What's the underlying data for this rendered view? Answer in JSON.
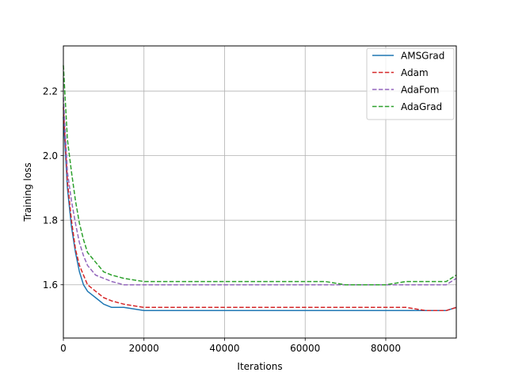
{
  "chart_data": {
    "type": "line",
    "title": "",
    "xlabel": "Iterations",
    "ylabel": "Training loss",
    "xlim": [
      0,
      97500
    ],
    "ylim": [
      1.435,
      2.34
    ],
    "xticks": [
      0,
      20000,
      40000,
      60000,
      80000
    ],
    "yticks": [
      1.6,
      1.8,
      2.0,
      2.2
    ],
    "xtick_labels": [
      "0",
      "20000",
      "40000",
      "60000",
      "80000"
    ],
    "ytick_labels": [
      "1.6",
      "1.8",
      "2.0",
      "2.2"
    ],
    "grid": true,
    "legend_position": "top-right",
    "series": [
      {
        "name": "AMSGrad",
        "color": "#1f77b4",
        "style": "solid",
        "x": [
          0,
          1000,
          2000,
          3000,
          4000,
          5000,
          6000,
          8000,
          10000,
          12000,
          15000,
          20000,
          25000,
          30000,
          35000,
          40000,
          45000,
          50000,
          55000,
          60000,
          65000,
          70000,
          75000,
          80000,
          85000,
          90000,
          95000,
          97500
        ],
        "y": [
          2.12,
          1.9,
          1.78,
          1.7,
          1.64,
          1.6,
          1.58,
          1.56,
          1.54,
          1.53,
          1.53,
          1.52,
          1.52,
          1.52,
          1.52,
          1.52,
          1.52,
          1.52,
          1.52,
          1.52,
          1.52,
          1.52,
          1.52,
          1.52,
          1.52,
          1.52,
          1.52,
          1.53
        ]
      },
      {
        "name": "Adam",
        "color": "#d62728",
        "style": "dashed",
        "x": [
          0,
          1000,
          2000,
          3000,
          4000,
          5000,
          6000,
          8000,
          10000,
          12000,
          15000,
          20000,
          25000,
          30000,
          35000,
          40000,
          45000,
          50000,
          55000,
          60000,
          65000,
          70000,
          75000,
          80000,
          85000,
          90000,
          95000,
          97500
        ],
        "y": [
          2.15,
          1.92,
          1.8,
          1.71,
          1.66,
          1.63,
          1.6,
          1.58,
          1.56,
          1.55,
          1.54,
          1.53,
          1.53,
          1.53,
          1.53,
          1.53,
          1.53,
          1.53,
          1.53,
          1.53,
          1.53,
          1.53,
          1.53,
          1.53,
          1.53,
          1.52,
          1.52,
          1.53
        ]
      },
      {
        "name": "AdaFom",
        "color": "#9467bd",
        "style": "dashed",
        "x": [
          0,
          1000,
          2000,
          3000,
          4000,
          5000,
          6000,
          8000,
          10000,
          12000,
          15000,
          20000,
          25000,
          30000,
          35000,
          40000,
          45000,
          50000,
          55000,
          60000,
          65000,
          70000,
          75000,
          80000,
          85000,
          90000,
          95000,
          97500
        ],
        "y": [
          2.18,
          1.95,
          1.86,
          1.79,
          1.73,
          1.69,
          1.66,
          1.63,
          1.62,
          1.61,
          1.6,
          1.6,
          1.6,
          1.6,
          1.6,
          1.6,
          1.6,
          1.6,
          1.6,
          1.6,
          1.6,
          1.6,
          1.6,
          1.6,
          1.6,
          1.6,
          1.6,
          1.62
        ]
      },
      {
        "name": "AdaGrad",
        "color": "#2ca02c",
        "style": "dashed",
        "x": [
          0,
          1000,
          2000,
          3000,
          4000,
          5000,
          6000,
          8000,
          10000,
          12000,
          15000,
          20000,
          25000,
          30000,
          35000,
          40000,
          45000,
          50000,
          55000,
          60000,
          65000,
          70000,
          75000,
          80000,
          85000,
          90000,
          95000,
          97500
        ],
        "y": [
          2.28,
          2.05,
          1.95,
          1.86,
          1.79,
          1.74,
          1.7,
          1.67,
          1.64,
          1.63,
          1.62,
          1.61,
          1.61,
          1.61,
          1.61,
          1.61,
          1.61,
          1.61,
          1.61,
          1.61,
          1.61,
          1.6,
          1.6,
          1.6,
          1.61,
          1.61,
          1.61,
          1.63
        ]
      }
    ]
  }
}
